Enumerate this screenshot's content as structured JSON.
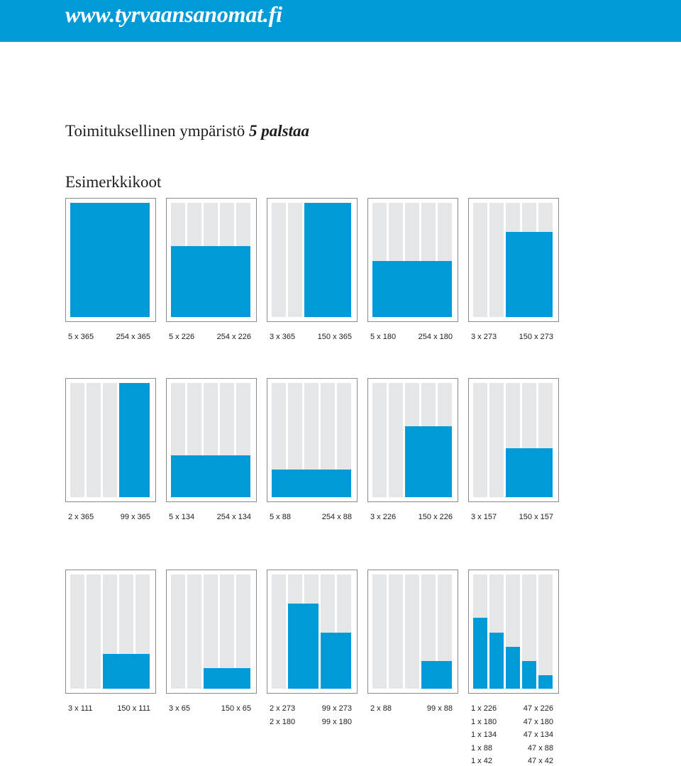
{
  "header": {
    "url": "www.tyrvaansanomat.fi",
    "color": "#009ad9"
  },
  "title": {
    "text": "Toimituksellinen ympäristö ",
    "emphasis": "5 palstaa"
  },
  "subtitle": "Esimerkkikoot",
  "colors": {
    "ad": "#009ad9",
    "column": "#e5e6e8",
    "border": "#8a8a8a"
  },
  "page_height_mm": 365,
  "rows": [
    [
      {
        "ads": [
          {
            "col": 1,
            "span": 5,
            "height": 365
          }
        ],
        "labels": [
          {
            "left": "5 x 365",
            "right": "254 x 365"
          }
        ]
      },
      {
        "ads": [
          {
            "col": 1,
            "span": 5,
            "height": 226
          }
        ],
        "labels": [
          {
            "left": "5 x 226",
            "right": "254 x 226"
          }
        ]
      },
      {
        "ads": [
          {
            "col": 3,
            "span": 3,
            "height": 365
          }
        ],
        "labels": [
          {
            "left": "3 x 365",
            "right": "150 x 365"
          }
        ]
      },
      {
        "ads": [
          {
            "col": 1,
            "span": 5,
            "height": 180
          }
        ],
        "labels": [
          {
            "left": "5 x 180",
            "right": "254 x 180"
          }
        ]
      },
      {
        "ads": [
          {
            "col": 3,
            "span": 3,
            "height": 273
          }
        ],
        "labels": [
          {
            "left": "3 x 273",
            "right": "150 x 273"
          }
        ]
      }
    ],
    [
      {
        "ads": [
          {
            "col": 4,
            "span": 2,
            "height": 365
          }
        ],
        "labels": [
          {
            "left": "2 x 365",
            "right": "99 x 365"
          }
        ]
      },
      {
        "ads": [
          {
            "col": 1,
            "span": 5,
            "height": 134
          }
        ],
        "labels": [
          {
            "left": "5 x 134",
            "right": "254 x 134"
          }
        ]
      },
      {
        "ads": [
          {
            "col": 1,
            "span": 5,
            "height": 88
          }
        ],
        "labels": [
          {
            "left": "5 x 88",
            "right": "254 x 88"
          }
        ]
      },
      {
        "ads": [
          {
            "col": 3,
            "span": 3,
            "height": 226
          }
        ],
        "labels": [
          {
            "left": "3 x 226",
            "right": "150 x 226"
          }
        ]
      },
      {
        "ads": [
          {
            "col": 3,
            "span": 3,
            "height": 157
          }
        ],
        "labels": [
          {
            "left": "3 x 157",
            "right": "150 x 157"
          }
        ]
      }
    ],
    [
      {
        "ads": [
          {
            "col": 3,
            "span": 3,
            "height": 111
          }
        ],
        "labels": [
          {
            "left": "3 x 111",
            "right": "150 x 111"
          }
        ]
      },
      {
        "ads": [
          {
            "col": 3,
            "span": 3,
            "height": 65
          }
        ],
        "labels": [
          {
            "left": "3 x 65",
            "right": "150 x 65"
          }
        ]
      },
      {
        "ads": [
          {
            "col": 2,
            "span": 2,
            "height": 273
          },
          {
            "col": 4,
            "span": 2,
            "height": 180
          }
        ],
        "labels": [
          {
            "left": "2 x 273",
            "right": "99 x 273"
          },
          {
            "left": "2 x 180",
            "right": "99 x 180"
          }
        ]
      },
      {
        "ads": [
          {
            "col": 4,
            "span": 2,
            "height": 88
          }
        ],
        "labels": [
          {
            "left": "2 x 88",
            "right": "99 x 88"
          }
        ]
      },
      {
        "ads": [
          {
            "col": 1,
            "span": 1,
            "height": 226
          },
          {
            "col": 2,
            "span": 1,
            "height": 180
          },
          {
            "col": 3,
            "span": 1,
            "height": 134
          },
          {
            "col": 4,
            "span": 1,
            "height": 88
          },
          {
            "col": 5,
            "span": 1,
            "height": 42
          }
        ],
        "labels": [
          {
            "left": "1 x 226",
            "right": "47 x 226"
          },
          {
            "left": "1 x 180",
            "right": "47 x 180"
          },
          {
            "left": "1 x 134",
            "right": "47 x 134"
          },
          {
            "left": "1 x 88",
            "right": "47 x 88"
          },
          {
            "left": "1 x 42",
            "right": "47 x 42"
          }
        ]
      }
    ]
  ]
}
